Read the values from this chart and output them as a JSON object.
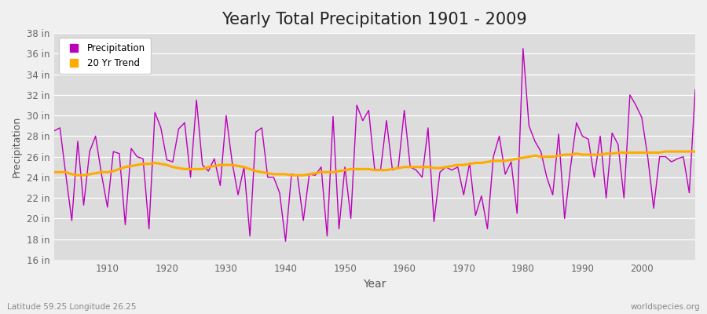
{
  "title": "Yearly Total Precipitation 1901 - 2009",
  "xlabel": "Year",
  "ylabel": "Precipitation",
  "footnote_left": "Latitude 59.25 Longitude 26.25",
  "footnote_right": "worldspecies.org",
  "years": [
    1901,
    1902,
    1903,
    1904,
    1905,
    1906,
    1907,
    1908,
    1909,
    1910,
    1911,
    1912,
    1913,
    1914,
    1915,
    1916,
    1917,
    1918,
    1919,
    1920,
    1921,
    1922,
    1923,
    1924,
    1925,
    1926,
    1927,
    1928,
    1929,
    1930,
    1931,
    1932,
    1933,
    1934,
    1935,
    1936,
    1937,
    1938,
    1939,
    1940,
    1941,
    1942,
    1943,
    1944,
    1945,
    1946,
    1947,
    1948,
    1949,
    1950,
    1951,
    1952,
    1953,
    1954,
    1955,
    1956,
    1957,
    1958,
    1959,
    1960,
    1961,
    1962,
    1963,
    1964,
    1965,
    1966,
    1967,
    1968,
    1969,
    1970,
    1971,
    1972,
    1973,
    1974,
    1975,
    1976,
    1977,
    1978,
    1979,
    1980,
    1981,
    1982,
    1983,
    1984,
    1985,
    1986,
    1987,
    1988,
    1989,
    1990,
    1991,
    1992,
    1993,
    1994,
    1995,
    1996,
    1997,
    1998,
    1999,
    2000,
    2001,
    2002,
    2003,
    2004,
    2005,
    2006,
    2007,
    2008,
    2009
  ],
  "precip": [
    28.5,
    28.8,
    24.2,
    19.8,
    27.5,
    21.3,
    26.5,
    28.0,
    24.3,
    21.1,
    26.5,
    26.3,
    19.4,
    26.8,
    26.0,
    25.8,
    19.0,
    30.3,
    28.8,
    25.7,
    25.5,
    28.7,
    29.3,
    24.0,
    31.5,
    25.2,
    24.6,
    25.8,
    23.2,
    30.0,
    25.5,
    22.3,
    25.0,
    18.3,
    28.4,
    28.8,
    24.0,
    24.0,
    22.5,
    17.8,
    24.3,
    24.2,
    19.8,
    24.3,
    24.2,
    25.0,
    18.3,
    29.9,
    19.0,
    25.0,
    20.0,
    31.0,
    29.5,
    30.5,
    24.8,
    24.7,
    29.5,
    24.7,
    25.0,
    30.5,
    25.0,
    24.7,
    24.0,
    28.8,
    19.7,
    24.5,
    25.0,
    24.7,
    25.0,
    22.3,
    25.4,
    20.3,
    22.2,
    19.0,
    26.0,
    28.0,
    24.3,
    25.5,
    20.5,
    36.5,
    29.0,
    27.5,
    26.5,
    24.0,
    22.3,
    28.2,
    20.0,
    25.0,
    29.3,
    28.0,
    27.7,
    24.0,
    28.0,
    22.0,
    28.3,
    27.2,
    22.0,
    32.0,
    31.0,
    29.8,
    26.0,
    21.0,
    26.0,
    26.0,
    25.5,
    25.8,
    26.0,
    22.5,
    32.5
  ],
  "trend": [
    24.5,
    24.5,
    24.5,
    24.3,
    24.2,
    24.2,
    24.3,
    24.4,
    24.5,
    24.5,
    24.6,
    24.8,
    25.0,
    25.1,
    25.2,
    25.3,
    25.3,
    25.4,
    25.3,
    25.2,
    25.0,
    24.9,
    24.8,
    24.8,
    24.8,
    24.8,
    25.0,
    25.1,
    25.2,
    25.2,
    25.2,
    25.1,
    25.0,
    24.8,
    24.6,
    24.5,
    24.4,
    24.3,
    24.3,
    24.3,
    24.2,
    24.2,
    24.2,
    24.3,
    24.4,
    24.5,
    24.5,
    24.5,
    24.6,
    24.7,
    24.8,
    24.8,
    24.8,
    24.8,
    24.7,
    24.7,
    24.7,
    24.8,
    24.9,
    25.0,
    25.0,
    25.0,
    25.0,
    25.0,
    24.9,
    24.9,
    25.0,
    25.1,
    25.2,
    25.2,
    25.3,
    25.4,
    25.4,
    25.5,
    25.6,
    25.6,
    25.6,
    25.7,
    25.8,
    25.9,
    26.0,
    26.1,
    26.0,
    26.0,
    26.0,
    26.1,
    26.2,
    26.2,
    26.3,
    26.2,
    26.2,
    26.2,
    26.2,
    26.3,
    26.3,
    26.4,
    26.4,
    26.4,
    26.4,
    26.4,
    26.4,
    26.4,
    26.4,
    26.5,
    26.5,
    26.5,
    26.5,
    26.5,
    26.5
  ],
  "precip_color": "#bb00bb",
  "trend_color": "#ffaa00",
  "background_color": "#f0f0f0",
  "plot_bg_color": "#dcdcdc",
  "grid_color": "#ffffff",
  "ylim": [
    16,
    38
  ],
  "yticks": [
    16,
    18,
    20,
    22,
    24,
    26,
    28,
    30,
    32,
    34,
    36,
    38
  ],
  "ytick_labels": [
    "16 in",
    "18 in",
    "20 in",
    "22 in",
    "24 in",
    "26 in",
    "28 in",
    "30 in",
    "32 in",
    "34 in",
    "36 in",
    "38 in"
  ],
  "xticks": [
    1910,
    1920,
    1930,
    1940,
    1950,
    1960,
    1970,
    1980,
    1990,
    2000
  ],
  "title_fontsize": 15,
  "legend_label_precip": "Precipitation",
  "legend_label_trend": "20 Yr Trend"
}
